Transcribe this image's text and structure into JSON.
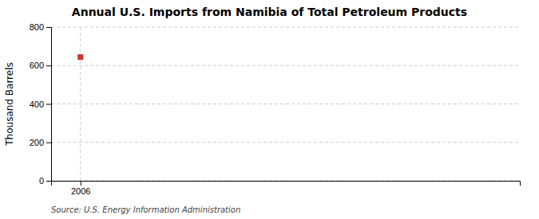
{
  "chart_data": {
    "type": "scatter",
    "title": "Annual U.S. Imports from Namibia of Total Petroleum Products",
    "ylabel": "Thousand Barrels",
    "source": "Source: U.S. Energy Information Administration",
    "x": [
      2006
    ],
    "values": [
      644
    ],
    "color": "#cc3333",
    "marker": "square",
    "xlim": [
      2005.8,
      2009.0
    ],
    "xticks": [
      2006
    ],
    "ylim": [
      0,
      800
    ],
    "yticks": [
      0,
      200,
      400,
      600,
      800
    ],
    "grid": true
  }
}
